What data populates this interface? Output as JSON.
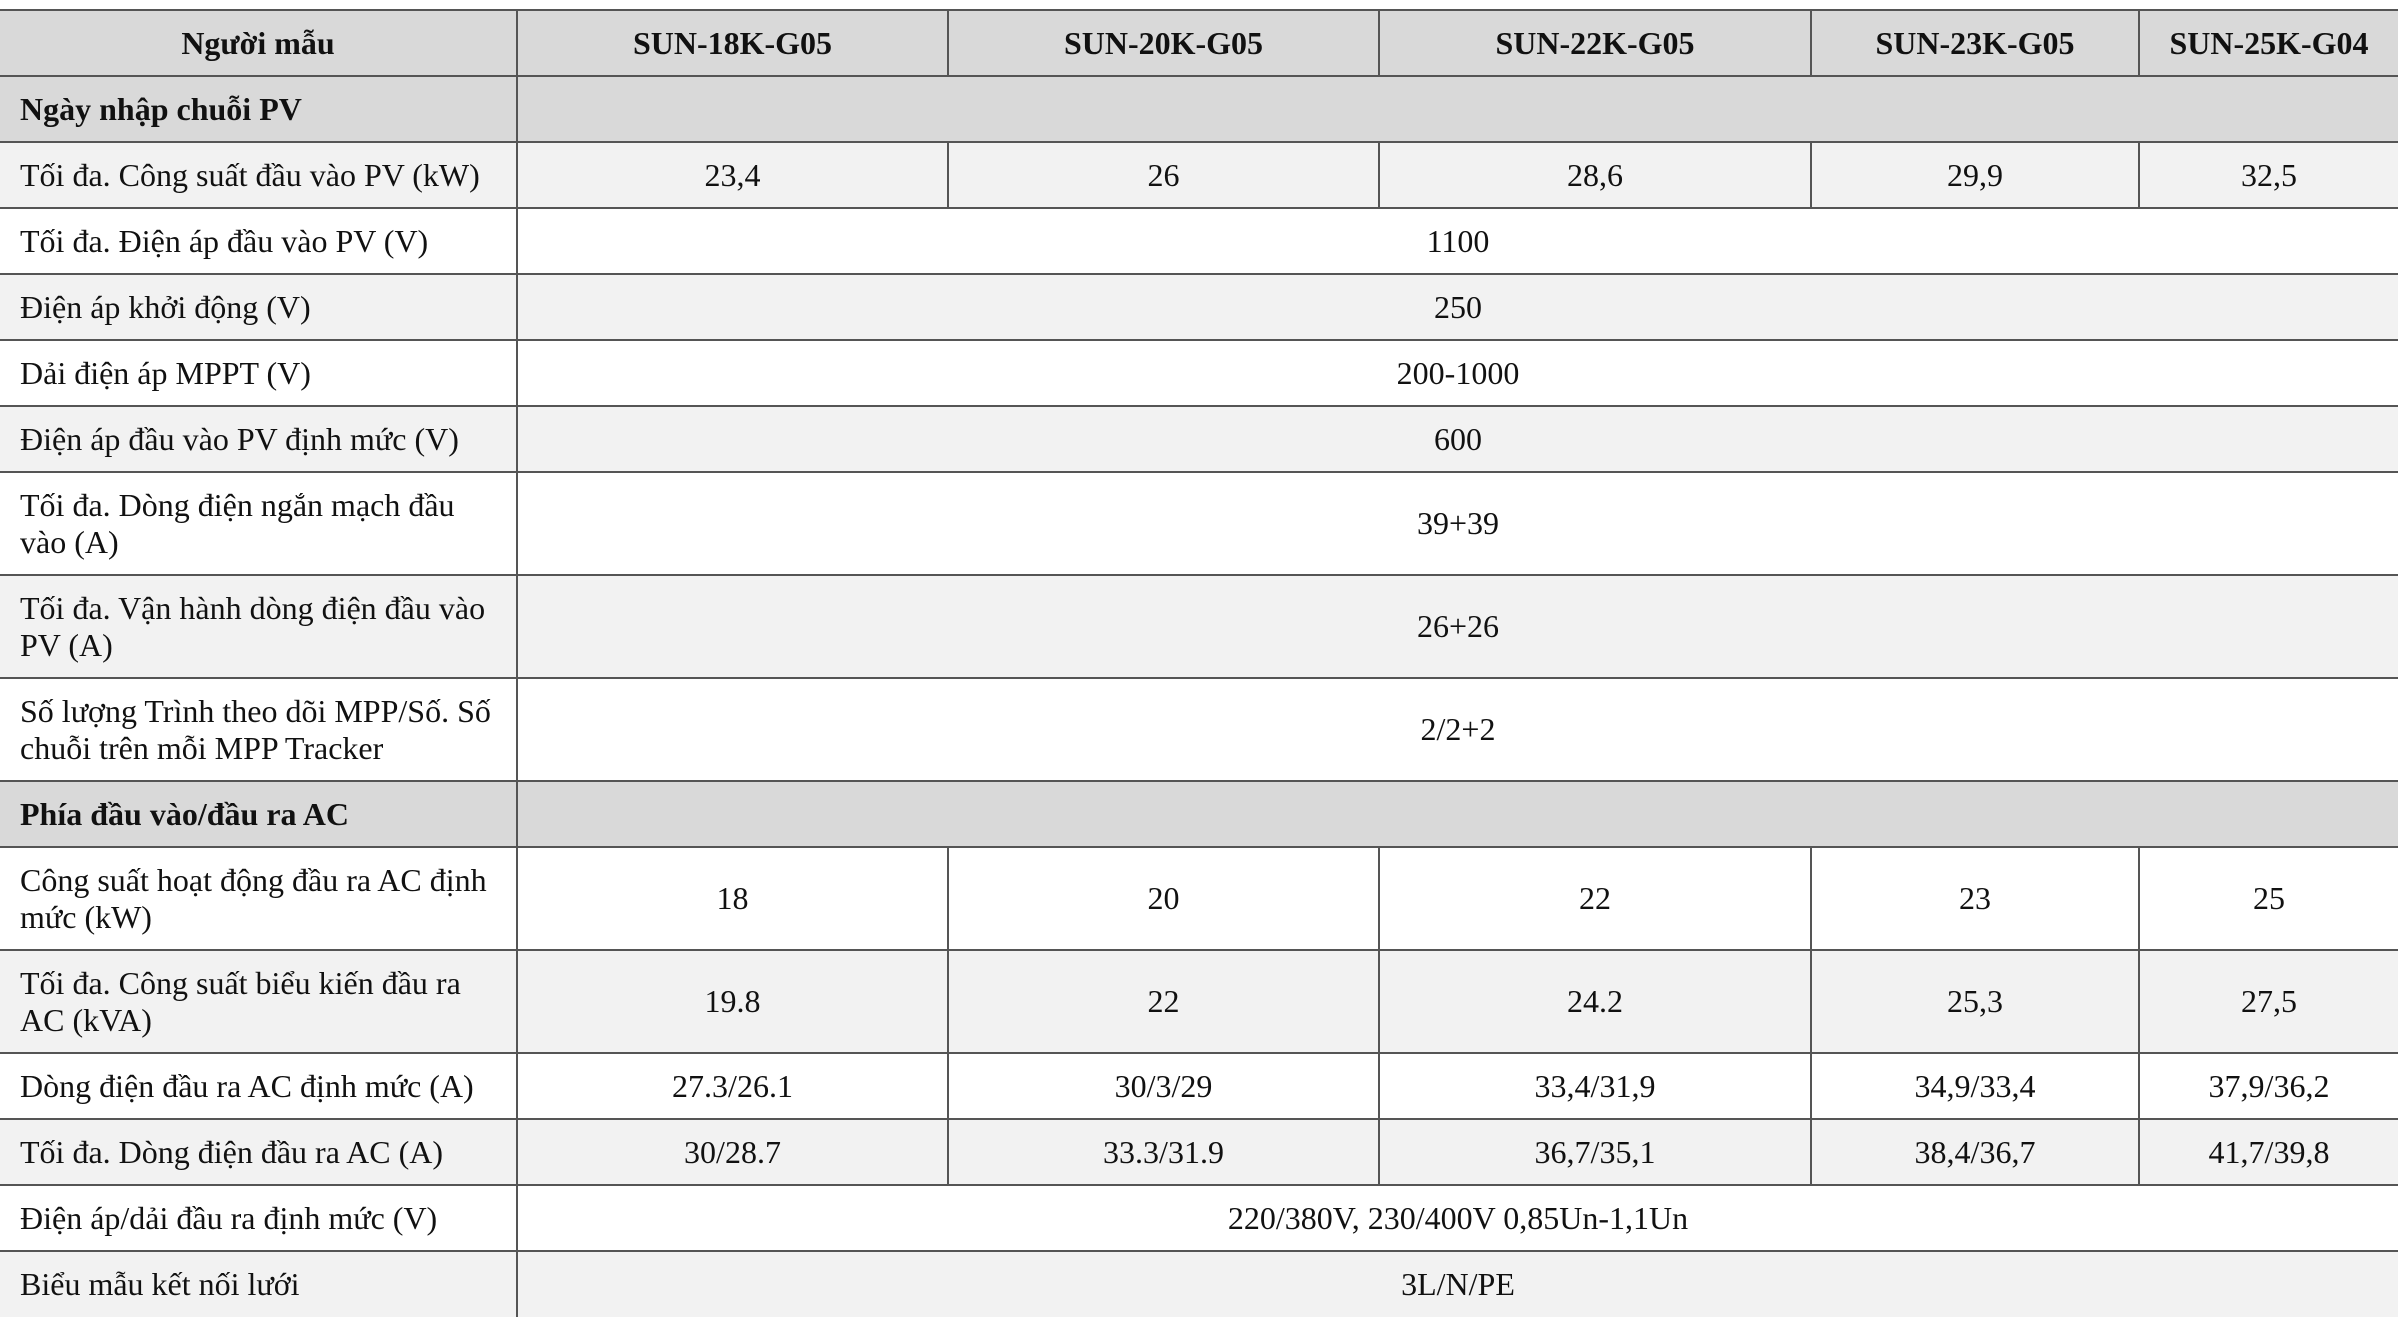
{
  "table": {
    "header": {
      "model_label": "Người mẫu",
      "models": [
        "SUN-18K-G05",
        "SUN-20K-G05",
        "SUN-22K-G05",
        "SUN-23K-G05",
        "SUN-25K-G04"
      ]
    },
    "sections": [
      {
        "title": "Ngày nhập chuỗi PV",
        "rows": [
          {
            "label": "Tối đa. Công suất đầu vào PV (kW)",
            "values": [
              "23,4",
              "26",
              "28,6",
              "29,9",
              "32,5"
            ]
          },
          {
            "label": "Tối đa. Điện áp đầu vào PV (V)",
            "value": "1100"
          },
          {
            "label": "Điện áp khởi động (V)",
            "value": "250"
          },
          {
            "label": "Dải điện áp MPPT (V)",
            "value": "200-1000"
          },
          {
            "label": "Điện áp đầu vào PV định mức (V)",
            "value": "600"
          },
          {
            "label": "Tối đa. Dòng điện ngắn mạch đầu vào (A)",
            "value": "39+39"
          },
          {
            "label": "Tối đa. Vận hành dòng điện đầu vào PV (A)",
            "value": "26+26"
          },
          {
            "label": "Số lượng Trình theo dõi MPP/Số. Số chuỗi trên mỗi MPP Tracker",
            "value": "2/2+2"
          }
        ]
      },
      {
        "title": "Phía đầu vào/đầu ra AC",
        "rows": [
          {
            "label": "Công suất hoạt động đầu ra AC định mức (kW)",
            "values": [
              "18",
              "20",
              "22",
              "23",
              "25"
            ]
          },
          {
            "label": "Tối đa. Công suất biểu kiến đầu ra AC (kVA)",
            "values": [
              "19.8",
              "22",
              "24.2",
              "25,3",
              "27,5"
            ]
          },
          {
            "label": "Dòng điện đầu ra AC định mức (A)",
            "values": [
              "27.3/26.1",
              "30/3/29",
              "33,4/31,9",
              "34,9/33,4",
              "37,9/36,2"
            ]
          },
          {
            "label": "Tối đa. Dòng điện đầu ra AC (A)",
            "values": [
              "30/28.7",
              "33.3/31.9",
              "36,7/35,1",
              "38,4/36,7",
              "41,7/39,8"
            ]
          },
          {
            "label": "Điện áp/dải đầu ra định mức (V)",
            "value": "220/380V, 230/400V 0,85Un-1,1Un"
          },
          {
            "label": "Biểu mẫu kết nối lưới",
            "value": "3L/N/PE"
          }
        ]
      }
    ]
  }
}
